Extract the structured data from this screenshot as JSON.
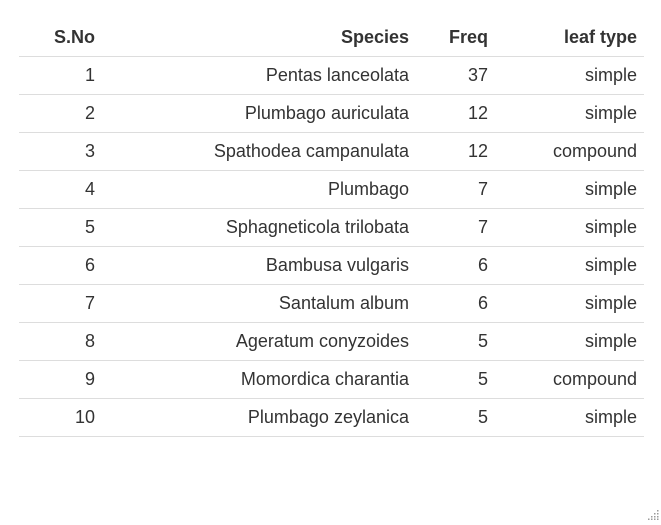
{
  "table": {
    "columns": [
      "S.No",
      "Species",
      "Freq",
      "leaf type"
    ],
    "rows": [
      [
        "1",
        "Pentas lanceolata",
        "37",
        "simple"
      ],
      [
        "2",
        "Plumbago auriculata",
        "12",
        "simple"
      ],
      [
        "3",
        "Spathodea campanulata",
        "12",
        "compound"
      ],
      [
        "4",
        "Plumbago",
        "7",
        "simple"
      ],
      [
        "5",
        "Sphagneticola trilobata",
        "7",
        "simple"
      ],
      [
        "6",
        "Bambusa vulgaris",
        "6",
        "simple"
      ],
      [
        "7",
        "Santalum album",
        "6",
        "simple"
      ],
      [
        "8",
        "Ageratum conyzoides",
        "5",
        "simple"
      ],
      [
        "9",
        "Momordica charantia",
        "5",
        "compound"
      ],
      [
        "10",
        "Plumbago zeylanica",
        "5",
        "simple"
      ]
    ]
  },
  "icons": {
    "resize": "resize-grip-icon"
  },
  "colors": {
    "text": "#333333",
    "border": "#dddddd",
    "background": "#ffffff"
  }
}
